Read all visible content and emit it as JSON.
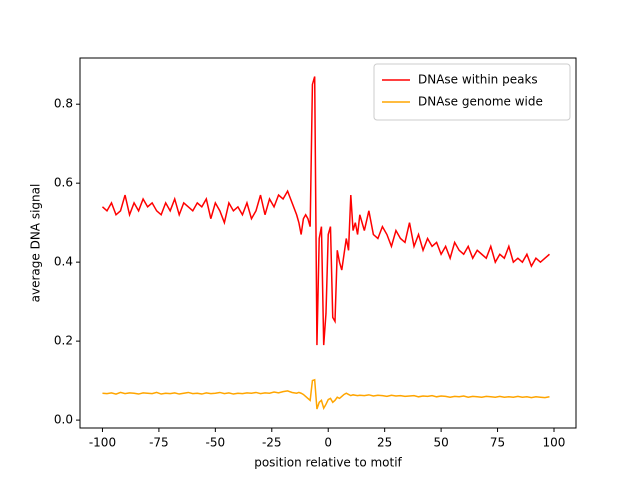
{
  "chart_data": {
    "type": "line",
    "xlabel": "position relative to motif",
    "ylabel": "average DNA signal",
    "x": [
      -100,
      -98,
      -96,
      -94,
      -92,
      -90,
      -88,
      -86,
      -84,
      -82,
      -80,
      -78,
      -76,
      -74,
      -72,
      -70,
      -68,
      -66,
      -64,
      -62,
      -60,
      -58,
      -56,
      -54,
      -52,
      -50,
      -48,
      -46,
      -44,
      -42,
      -40,
      -38,
      -36,
      -34,
      -32,
      -30,
      -28,
      -26,
      -24,
      -22,
      -20,
      -18,
      -16,
      -14,
      -13,
      -12,
      -11,
      -10,
      -9,
      -8,
      -7,
      -6,
      -5,
      -4,
      -3,
      -2,
      -1,
      0,
      1,
      2,
      3,
      4,
      5,
      6,
      7,
      8,
      9,
      10,
      11,
      12,
      13,
      14,
      16,
      18,
      20,
      22,
      24,
      26,
      28,
      30,
      32,
      34,
      36,
      38,
      40,
      42,
      44,
      46,
      48,
      50,
      52,
      54,
      56,
      58,
      60,
      62,
      64,
      66,
      68,
      70,
      72,
      74,
      76,
      78,
      80,
      82,
      84,
      86,
      88,
      90,
      92,
      94,
      96,
      98
    ],
    "series": [
      {
        "name": "DNAse within peaks",
        "color": "#ff0000",
        "values": [
          0.54,
          0.53,
          0.55,
          0.52,
          0.53,
          0.57,
          0.52,
          0.55,
          0.53,
          0.56,
          0.54,
          0.55,
          0.53,
          0.52,
          0.55,
          0.53,
          0.56,
          0.52,
          0.55,
          0.54,
          0.53,
          0.55,
          0.54,
          0.56,
          0.51,
          0.55,
          0.53,
          0.5,
          0.55,
          0.53,
          0.54,
          0.52,
          0.55,
          0.51,
          0.53,
          0.57,
          0.52,
          0.56,
          0.54,
          0.57,
          0.56,
          0.58,
          0.55,
          0.52,
          0.5,
          0.47,
          0.51,
          0.52,
          0.51,
          0.49,
          0.85,
          0.87,
          0.19,
          0.46,
          0.49,
          0.19,
          0.27,
          0.47,
          0.49,
          0.26,
          0.25,
          0.43,
          0.4,
          0.38,
          0.42,
          0.46,
          0.43,
          0.57,
          0.48,
          0.5,
          0.47,
          0.52,
          0.48,
          0.53,
          0.47,
          0.46,
          0.49,
          0.47,
          0.44,
          0.48,
          0.46,
          0.45,
          0.5,
          0.44,
          0.47,
          0.43,
          0.46,
          0.44,
          0.45,
          0.42,
          0.44,
          0.41,
          0.45,
          0.43,
          0.42,
          0.44,
          0.41,
          0.43,
          0.42,
          0.41,
          0.44,
          0.4,
          0.42,
          0.41,
          0.44,
          0.4,
          0.41,
          0.4,
          0.42,
          0.39,
          0.41,
          0.4,
          0.41,
          0.42
        ]
      },
      {
        "name": "DNAse genome wide",
        "color": "#ffa500",
        "values": [
          0.068,
          0.067,
          0.069,
          0.066,
          0.07,
          0.067,
          0.069,
          0.068,
          0.066,
          0.069,
          0.068,
          0.067,
          0.07,
          0.066,
          0.068,
          0.067,
          0.069,
          0.066,
          0.068,
          0.07,
          0.067,
          0.068,
          0.066,
          0.069,
          0.067,
          0.068,
          0.07,
          0.067,
          0.069,
          0.066,
          0.068,
          0.067,
          0.069,
          0.068,
          0.07,
          0.067,
          0.069,
          0.068,
          0.071,
          0.069,
          0.072,
          0.074,
          0.07,
          0.068,
          0.07,
          0.068,
          0.065,
          0.06,
          0.055,
          0.05,
          0.1,
          0.102,
          0.028,
          0.045,
          0.05,
          0.03,
          0.04,
          0.052,
          0.055,
          0.045,
          0.05,
          0.058,
          0.055,
          0.06,
          0.065,
          0.068,
          0.065,
          0.062,
          0.064,
          0.063,
          0.062,
          0.063,
          0.062,
          0.064,
          0.061,
          0.063,
          0.062,
          0.06,
          0.063,
          0.061,
          0.062,
          0.06,
          0.061,
          0.062,
          0.059,
          0.061,
          0.06,
          0.062,
          0.059,
          0.061,
          0.06,
          0.058,
          0.06,
          0.059,
          0.061,
          0.058,
          0.06,
          0.059,
          0.058,
          0.06,
          0.059,
          0.058,
          0.06,
          0.058,
          0.059,
          0.058,
          0.06,
          0.058,
          0.059,
          0.057,
          0.059,
          0.058,
          0.057,
          0.059
        ]
      }
    ],
    "xlim": [
      -109.95,
      109.75
    ],
    "ylim": [
      -0.02,
      0.917
    ],
    "xticks": [
      -100,
      -75,
      -50,
      -25,
      0,
      25,
      50,
      75,
      100
    ],
    "yticks": [
      {
        "value": 0,
        "label": "0.0"
      },
      {
        "value": 0.2,
        "label": "0.2"
      },
      {
        "value": 0.4,
        "label": "0.4"
      },
      {
        "value": 0.6,
        "label": "0.6"
      },
      {
        "value": 0.8,
        "label": "0.8"
      }
    ],
    "legend": "upper right",
    "grid": false
  }
}
